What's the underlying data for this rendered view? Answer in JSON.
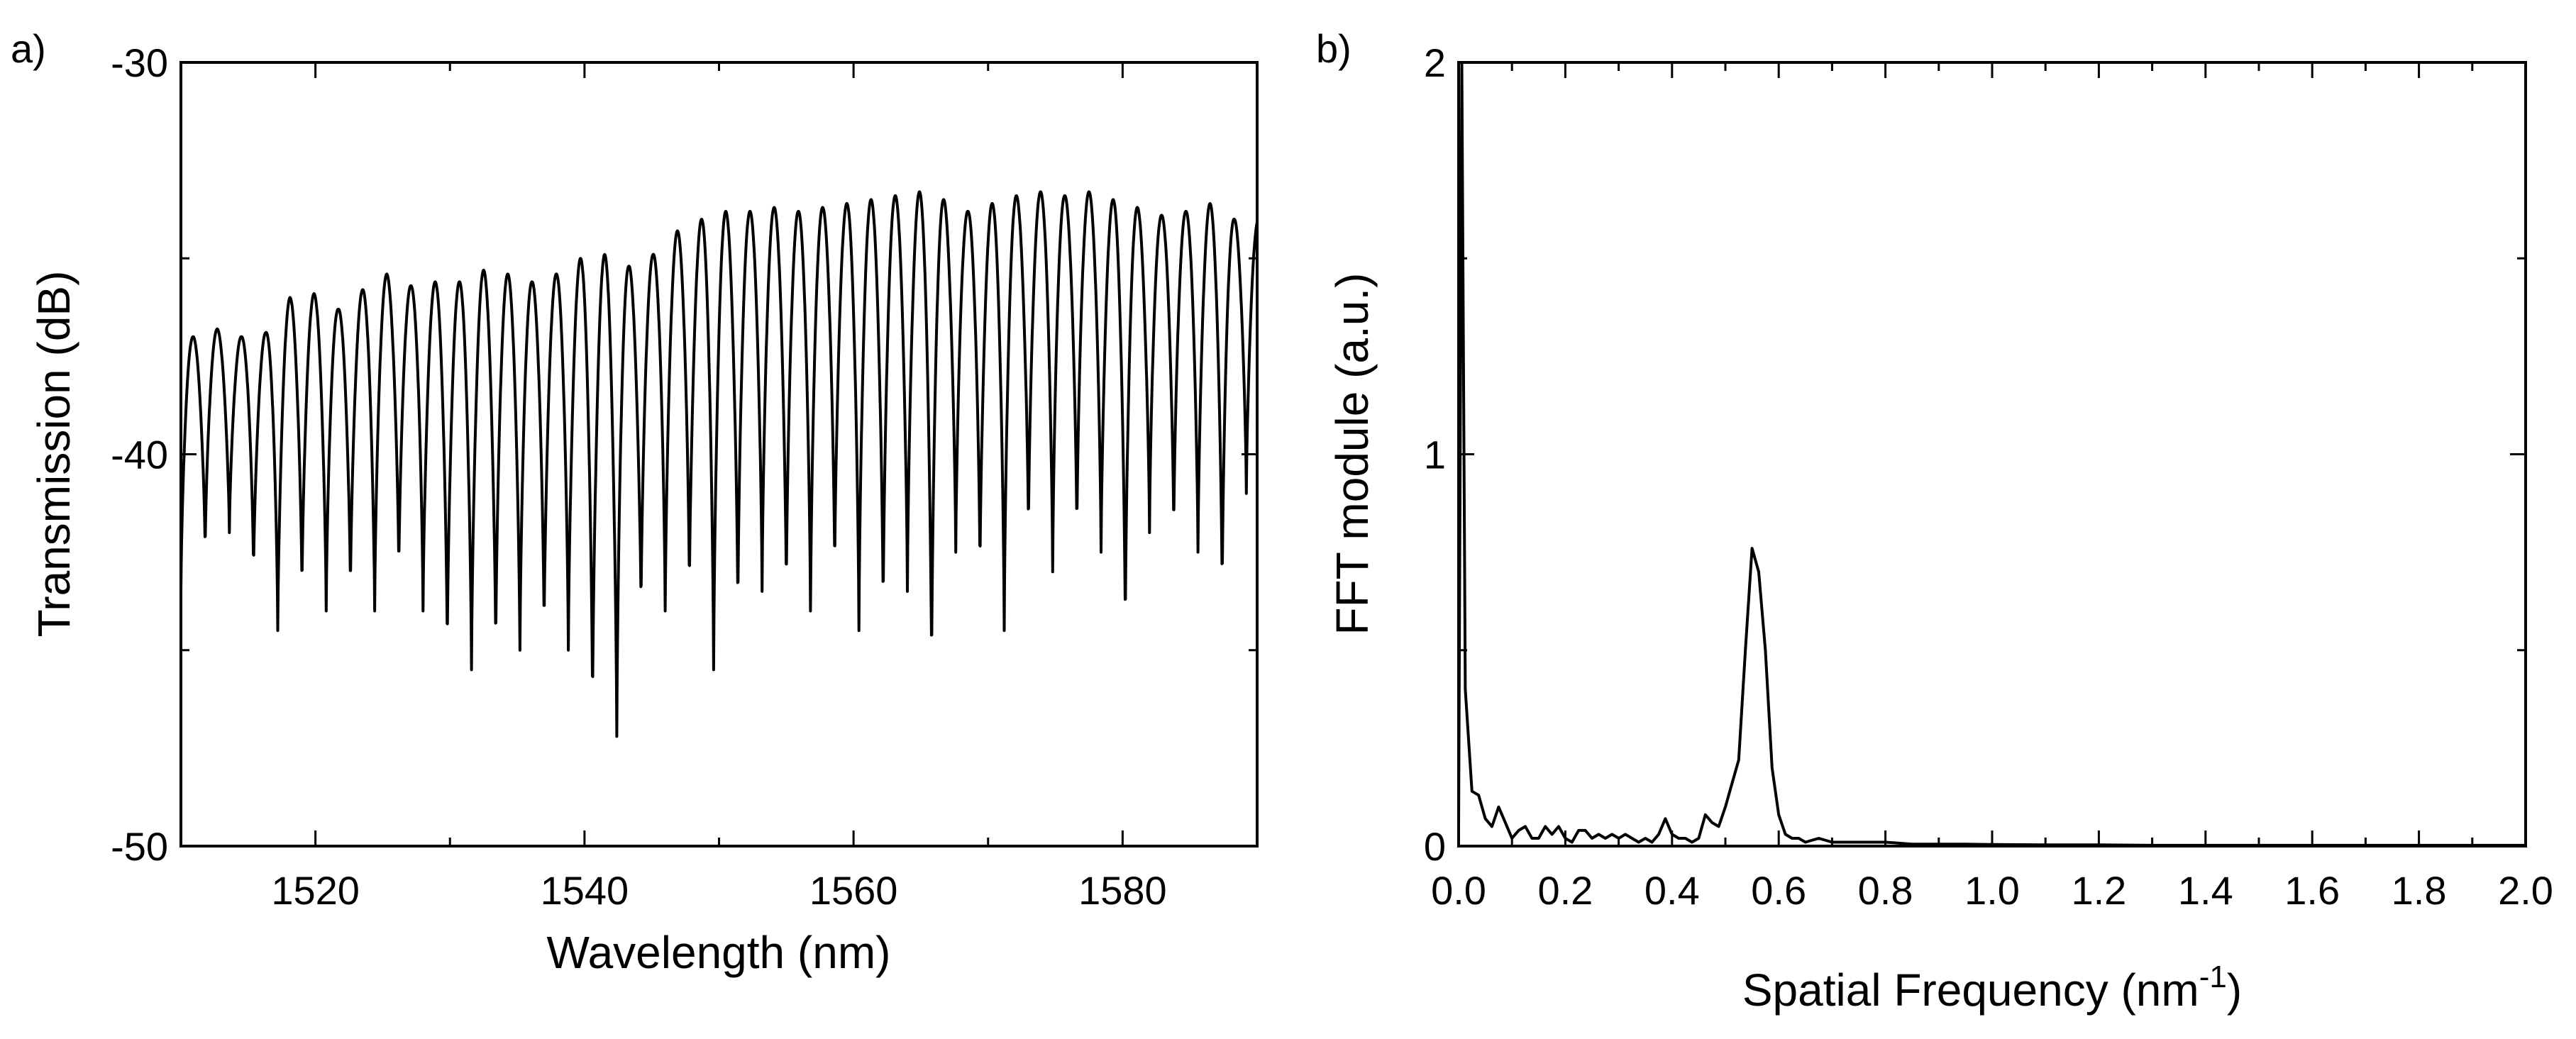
{
  "chart_data": [
    {
      "type": "line",
      "panel_label": "a)",
      "title": "",
      "xlabel": "Wavelength (nm)",
      "ylabel": "Transmission (dB)",
      "xlim": [
        1510,
        1590
      ],
      "ylim": [
        -50,
        -30
      ],
      "xticks": [
        1520,
        1540,
        1560,
        1580
      ],
      "xtick_labels": [
        "1520",
        "1540",
        "1560",
        "1580"
      ],
      "yticks": [
        -50,
        -40,
        -30
      ],
      "ytick_labels": [
        "-50",
        "-40",
        "-30"
      ],
      "grid": false,
      "legend": "none",
      "series": [
        {
          "name": "Transmission spectrum",
          "fringe_period_nm": 1.8,
          "first_maximum_nm": 1510.9,
          "maxima_db": [
            -37.0,
            -36.8,
            -37.0,
            -36.9,
            -36.0,
            -35.9,
            -36.3,
            -35.8,
            -35.4,
            -35.7,
            -35.6,
            -35.6,
            -35.3,
            -35.4,
            -35.6,
            -35.4,
            -35.0,
            -34.9,
            -35.2,
            -34.9,
            -34.3,
            -34.0,
            -33.8,
            -33.8,
            -33.7,
            -33.8,
            -33.7,
            -33.6,
            -33.5,
            -33.4,
            -33.3,
            -33.5,
            -33.8,
            -33.6,
            -33.4,
            -33.3,
            -33.4,
            -33.3,
            -33.5,
            -33.7,
            -33.9,
            -33.8,
            -33.6,
            -34.0
          ],
          "minima_db": [
            -43.5,
            -42.5,
            -42.0,
            -43.0,
            -44.5,
            -43.5,
            -44.0,
            -43.5,
            -44.0,
            -43.0,
            -44.0,
            -45.0,
            -45.5,
            -45.0,
            -45.0,
            -44.5,
            -45.0,
            -46.5,
            -47.2,
            -44.0,
            -44.0,
            -43.5,
            -45.5,
            -44.0,
            -43.5,
            -43.5,
            -44.0,
            -43.0,
            -44.5,
            -44.0,
            -43.5,
            -45.5,
            -42.5,
            -43.0,
            -44.5,
            -42.0,
            -43.0,
            -42.0,
            -42.5,
            -44.5,
            -42.0,
            -42.0,
            -42.5,
            -43.5,
            -41.0
          ]
        }
      ]
    },
    {
      "type": "line",
      "panel_label": "b)",
      "title": "",
      "xlabel": "Spatial Frequency (nm",
      "xlabel_superscript": "-1",
      "xlabel_close": ")",
      "ylabel": "FFT module (a.u.)",
      "xlim": [
        0.0,
        2.0
      ],
      "ylim": [
        0,
        2
      ],
      "xticks": [
        0.0,
        0.2,
        0.4,
        0.6,
        0.8,
        1.0,
        1.2,
        1.4,
        1.6,
        1.8,
        2.0
      ],
      "xtick_labels": [
        "0.0",
        "0.2",
        "0.4",
        "0.6",
        "0.8",
        "1.0",
        "1.2",
        "1.4",
        "1.6",
        "1.8",
        "2.0"
      ],
      "yticks": [
        0,
        1,
        2
      ],
      "ytick_labels": [
        "0",
        "1",
        "2"
      ],
      "grid": false,
      "legend": "none",
      "series": [
        {
          "name": "FFT module",
          "x": [
            0.0,
            0.006,
            0.0125,
            0.025,
            0.0375,
            0.05,
            0.0625,
            0.075,
            0.0875,
            0.1,
            0.1125,
            0.125,
            0.1375,
            0.15,
            0.1625,
            0.175,
            0.1875,
            0.2,
            0.2125,
            0.225,
            0.2375,
            0.25,
            0.2625,
            0.275,
            0.2875,
            0.3,
            0.3125,
            0.325,
            0.3375,
            0.35,
            0.3625,
            0.375,
            0.3875,
            0.4,
            0.4125,
            0.425,
            0.4375,
            0.45,
            0.4625,
            0.475,
            0.4875,
            0.5,
            0.5125,
            0.525,
            0.5375,
            0.55,
            0.5625,
            0.575,
            0.5875,
            0.6,
            0.6125,
            0.625,
            0.6375,
            0.65,
            0.675,
            0.7,
            0.725,
            0.75,
            0.8,
            0.85,
            0.9,
            0.95,
            1.0,
            1.1,
            1.2,
            1.3,
            1.4,
            1.5,
            1.6,
            1.7,
            1.8,
            1.9,
            2.0
          ],
          "y": [
            0.05,
            2.0,
            0.4,
            0.14,
            0.13,
            0.07,
            0.05,
            0.1,
            0.06,
            0.02,
            0.04,
            0.05,
            0.02,
            0.02,
            0.05,
            0.03,
            0.05,
            0.02,
            0.01,
            0.04,
            0.04,
            0.02,
            0.03,
            0.02,
            0.03,
            0.02,
            0.03,
            0.02,
            0.01,
            0.02,
            0.01,
            0.03,
            0.07,
            0.03,
            0.02,
            0.02,
            0.01,
            0.02,
            0.08,
            0.06,
            0.05,
            0.1,
            0.16,
            0.22,
            0.5,
            0.76,
            0.7,
            0.5,
            0.2,
            0.08,
            0.03,
            0.02,
            0.02,
            0.01,
            0.02,
            0.01,
            0.01,
            0.01,
            0.01,
            0.005,
            0.005,
            0.005,
            0.004,
            0.003,
            0.003,
            0.002,
            0.002,
            0.002,
            0.002,
            0.002,
            0.002,
            0.002,
            0.002
          ]
        }
      ]
    }
  ]
}
